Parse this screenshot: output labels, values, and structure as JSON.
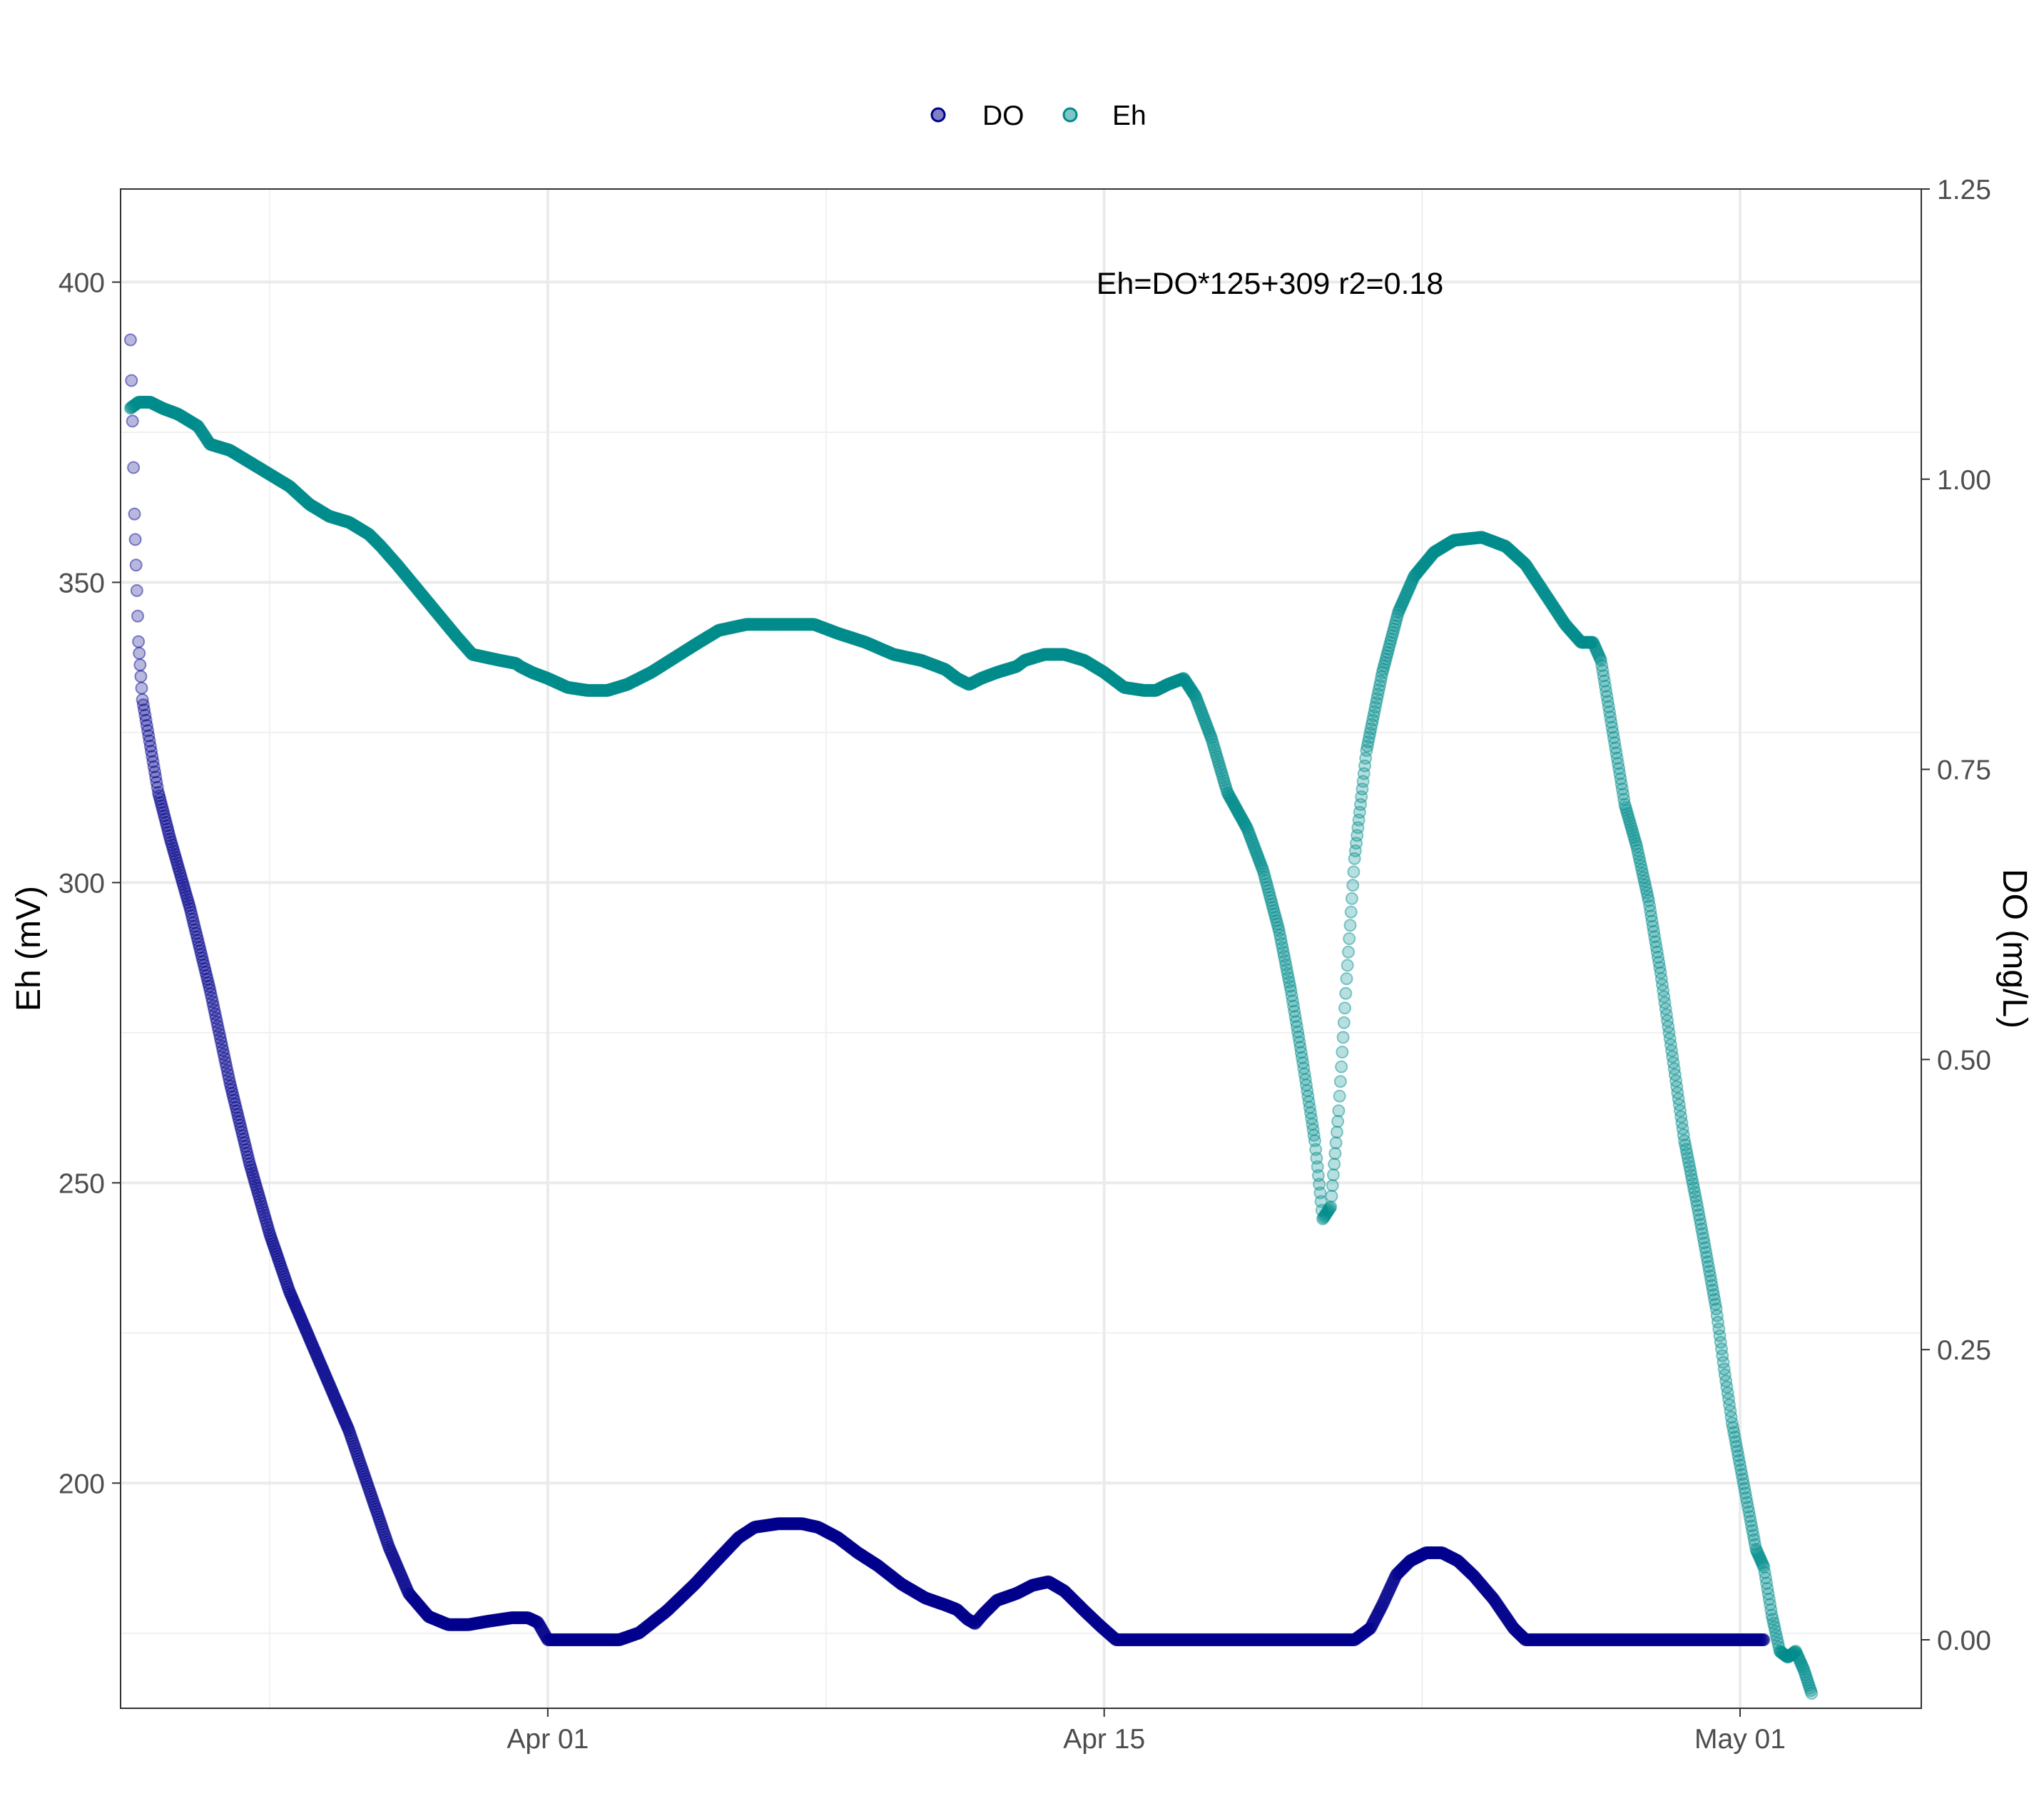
{
  "chart_data": {
    "type": "scatter",
    "title": "",
    "xlabel": "",
    "ylabel": "Eh (mV)",
    "y2label": "DO (mg/L)",
    "x_ticks": [
      "Apr 01",
      "Apr 15",
      "May 01"
    ],
    "x_tick_days": [
      0,
      14,
      30
    ],
    "xlim": [
      -10.75,
      34.56
    ],
    "ylim": [
      162.5,
      415.5
    ],
    "y_ticks": [
      200,
      250,
      300,
      350,
      400
    ],
    "y2lim": [
      -0.059,
      1.25
    ],
    "y2_ticks": [
      "0.00",
      "0.25",
      "0.50",
      "0.75",
      "1.00",
      "1.25"
    ],
    "y2_tick_values": [
      0,
      0.25,
      0.5,
      0.75,
      1.0,
      1.25
    ],
    "grid": true,
    "legend_position": "top",
    "annotation": "Eh=DO*125+309 r2=0.18",
    "series": [
      {
        "name": "DO",
        "axis": "right",
        "color": "#00008B",
        "points": [
          [
            -10.5,
            1.12
          ],
          [
            -10.45,
            1.05
          ],
          [
            -10.4,
            0.97
          ],
          [
            -10.3,
            0.86
          ],
          [
            -10.2,
            0.81
          ],
          [
            -10.0,
            0.77
          ],
          [
            -9.8,
            0.73
          ],
          [
            -9.5,
            0.69
          ],
          [
            -9.0,
            0.63
          ],
          [
            -8.5,
            0.56
          ],
          [
            -8.0,
            0.48
          ],
          [
            -7.5,
            0.41
          ],
          [
            -7.0,
            0.35
          ],
          [
            -6.5,
            0.3
          ],
          [
            -6.0,
            0.26
          ],
          [
            -5.5,
            0.22
          ],
          [
            -5.0,
            0.18
          ],
          [
            -4.5,
            0.13
          ],
          [
            -4.0,
            0.08
          ],
          [
            -3.5,
            0.04
          ],
          [
            -3.0,
            0.02
          ],
          [
            -2.5,
            0.013
          ],
          [
            -2.0,
            0.013
          ],
          [
            -1.5,
            0.016
          ],
          [
            -0.9,
            0.019
          ],
          [
            -0.5,
            0.019
          ],
          [
            -0.25,
            0.015
          ],
          [
            0.0,
            0.0
          ],
          [
            1.0,
            0.0
          ],
          [
            1.8,
            0.0
          ],
          [
            2.3,
            0.006
          ],
          [
            3.0,
            0.025
          ],
          [
            3.7,
            0.048
          ],
          [
            4.3,
            0.07
          ],
          [
            4.8,
            0.088
          ],
          [
            5.2,
            0.097
          ],
          [
            5.8,
            0.1
          ],
          [
            6.4,
            0.1
          ],
          [
            6.8,
            0.097
          ],
          [
            7.3,
            0.088
          ],
          [
            7.8,
            0.075
          ],
          [
            8.3,
            0.064
          ],
          [
            8.9,
            0.048
          ],
          [
            9.5,
            0.036
          ],
          [
            10.0,
            0.03
          ],
          [
            10.3,
            0.026
          ],
          [
            10.55,
            0.018
          ],
          [
            10.75,
            0.014
          ],
          [
            10.95,
            0.022
          ],
          [
            11.3,
            0.034
          ],
          [
            11.8,
            0.04
          ],
          [
            12.2,
            0.047
          ],
          [
            12.6,
            0.05
          ],
          [
            13.0,
            0.042
          ],
          [
            13.5,
            0.025
          ],
          [
            13.9,
            0.012
          ],
          [
            14.3,
            0.0
          ],
          [
            15.5,
            0.0
          ],
          [
            17.0,
            0.0
          ],
          [
            19.0,
            0.0
          ],
          [
            20.3,
            0.0
          ],
          [
            20.7,
            0.01
          ],
          [
            21.0,
            0.03
          ],
          [
            21.35,
            0.056
          ],
          [
            21.7,
            0.068
          ],
          [
            22.1,
            0.075
          ],
          [
            22.5,
            0.075
          ],
          [
            22.9,
            0.068
          ],
          [
            23.3,
            0.055
          ],
          [
            23.8,
            0.035
          ],
          [
            24.3,
            0.01
          ],
          [
            24.6,
            0.0
          ],
          [
            26.0,
            0.0
          ],
          [
            28.0,
            0.0
          ],
          [
            30.0,
            0.0
          ],
          [
            30.6,
            0.0
          ]
        ]
      },
      {
        "name": "Eh",
        "axis": "left",
        "color": "#008B8B",
        "points": [
          [
            -10.5,
            379
          ],
          [
            -10.3,
            380
          ],
          [
            -10.0,
            380
          ],
          [
            -9.7,
            379
          ],
          [
            -9.3,
            378
          ],
          [
            -8.8,
            376
          ],
          [
            -8.5,
            373
          ],
          [
            -8.0,
            372
          ],
          [
            -7.5,
            370
          ],
          [
            -7.0,
            368
          ],
          [
            -6.5,
            366
          ],
          [
            -6.0,
            363
          ],
          [
            -5.5,
            361
          ],
          [
            -5.0,
            360
          ],
          [
            -4.5,
            358
          ],
          [
            -4.2,
            356
          ],
          [
            -3.8,
            353
          ],
          [
            -3.3,
            349
          ],
          [
            -2.8,
            345
          ],
          [
            -2.3,
            341
          ],
          [
            -1.9,
            338
          ],
          [
            -1.2,
            337
          ],
          [
            -0.8,
            336.5
          ],
          [
            -0.7,
            336
          ],
          [
            -0.4,
            335
          ],
          [
            0.0,
            334
          ],
          [
            0.5,
            332.5
          ],
          [
            1.0,
            332
          ],
          [
            1.5,
            332
          ],
          [
            2.0,
            333
          ],
          [
            2.6,
            335
          ],
          [
            3.2,
            337.5
          ],
          [
            3.8,
            340
          ],
          [
            4.3,
            342
          ],
          [
            5.0,
            343
          ],
          [
            5.5,
            343
          ],
          [
            6.0,
            343
          ],
          [
            6.7,
            343
          ],
          [
            7.3,
            341.5
          ],
          [
            8.0,
            340
          ],
          [
            8.7,
            338
          ],
          [
            9.4,
            337
          ],
          [
            10.0,
            335.5
          ],
          [
            10.3,
            334
          ],
          [
            10.6,
            333
          ],
          [
            10.9,
            334
          ],
          [
            11.3,
            335
          ],
          [
            11.8,
            336
          ],
          [
            12.0,
            337
          ],
          [
            12.5,
            338
          ],
          [
            13.0,
            338
          ],
          [
            13.5,
            337
          ],
          [
            14.0,
            335
          ],
          [
            14.5,
            332.5
          ],
          [
            15.0,
            332
          ],
          [
            15.3,
            332
          ],
          [
            15.6,
            333
          ],
          [
            16.0,
            334
          ],
          [
            16.3,
            331
          ],
          [
            16.7,
            324
          ],
          [
            17.1,
            315
          ],
          [
            17.6,
            309
          ],
          [
            18.0,
            302
          ],
          [
            18.4,
            292
          ],
          [
            18.7,
            282
          ],
          [
            19.0,
            270
          ],
          [
            19.3,
            257
          ],
          [
            19.5,
            244
          ],
          [
            19.7,
            246
          ],
          [
            19.9,
            262
          ],
          [
            20.1,
            284
          ],
          [
            20.3,
            304
          ],
          [
            20.6,
            322
          ],
          [
            21.0,
            335
          ],
          [
            21.4,
            345
          ],
          [
            21.8,
            351
          ],
          [
            22.3,
            355
          ],
          [
            22.8,
            357
          ],
          [
            23.5,
            357.5
          ],
          [
            24.1,
            356
          ],
          [
            24.6,
            353
          ],
          [
            25.1,
            348
          ],
          [
            25.6,
            343
          ],
          [
            26.0,
            340
          ],
          [
            26.3,
            340
          ],
          [
            26.5,
            337
          ],
          [
            26.8,
            325
          ],
          [
            27.1,
            313
          ],
          [
            27.4,
            306
          ],
          [
            27.7,
            297
          ],
          [
            28.0,
            285
          ],
          [
            28.3,
            271
          ],
          [
            28.6,
            257
          ],
          [
            28.9,
            247
          ],
          [
            29.1,
            240
          ],
          [
            29.4,
            229
          ],
          [
            29.6,
            219
          ],
          [
            29.8,
            210
          ],
          [
            30.0,
            203
          ],
          [
            30.2,
            196
          ],
          [
            30.4,
            189
          ],
          [
            30.6,
            186
          ],
          [
            30.8,
            178
          ],
          [
            31.0,
            172
          ],
          [
            31.2,
            171
          ],
          [
            31.4,
            172
          ],
          [
            31.6,
            169
          ],
          [
            31.8,
            165
          ]
        ]
      }
    ]
  }
}
